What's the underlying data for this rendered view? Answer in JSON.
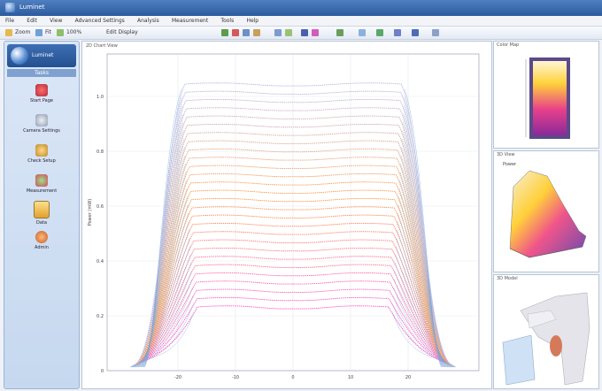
{
  "window": {
    "title": "Luminet"
  },
  "menu": [
    "File",
    "Edit",
    "View",
    "Advanced Settings",
    "Analysis",
    "Measurement",
    "Tools",
    "Help"
  ],
  "toolbar": {
    "labels": [
      "Zoom",
      "Fit",
      "100%",
      "Edit Display"
    ]
  },
  "sidebar": {
    "logo_text": "Luminet",
    "section": "Tasks",
    "items": [
      {
        "label": "Start Page",
        "icon": "start-page-icon"
      },
      {
        "label": "Camera Settings",
        "icon": "camera-settings-icon"
      },
      {
        "label": "Check Setup",
        "icon": "check-setup-icon"
      },
      {
        "label": "Measurement",
        "icon": "measurement-icon"
      },
      {
        "label": "Data",
        "icon": "data-icon"
      },
      {
        "label": "Admin",
        "icon": "admin-icon"
      }
    ]
  },
  "plot": {
    "panel_title": "2D Chart View",
    "ylabel": "Power (mW)",
    "xlabel": "",
    "ytick_labels": [
      "1.0",
      "0.8",
      "0.6",
      "0.4",
      "0.2",
      "0"
    ],
    "xtick_labels": [
      "-20",
      "-10",
      "0",
      "10",
      "20"
    ],
    "series_count": 28,
    "colors": {
      "low": "#ff55cc",
      "mid": "#ff9a44",
      "high": "#b7b7e6",
      "edge": "#7aa7d8"
    }
  },
  "side_panels": {
    "top_title": "Color Map",
    "mid_title": "3D View",
    "mid_label": "Power",
    "bot_title": "3D Model"
  }
}
